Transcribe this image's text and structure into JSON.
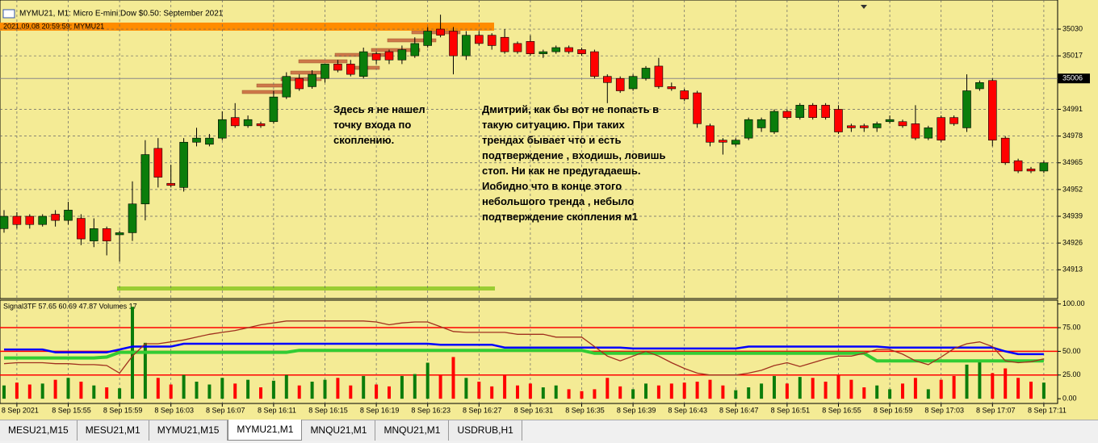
{
  "window": {
    "title": "MYMU21, M1:  Micro E-mini Dow $0.50: September 2021",
    "info": "2021.09.08 20:59:59; MYMU21"
  },
  "chart_data": [
    {
      "type": "candlestick",
      "categories": [
        null,
        "8 Sep 2021",
        null,
        null,
        null,
        "8 Sep 15:55",
        null,
        null,
        null,
        "8 Sep 15:59",
        null,
        null,
        null,
        "8 Sep 16:03",
        null,
        null,
        null,
        "8 Sep 16:07",
        null,
        null,
        null,
        "8 Sep 16:11",
        null,
        null,
        null,
        "8 Sep 16:15",
        null,
        null,
        null,
        "8 Sep 16:19",
        null,
        null,
        null,
        "8 Sep 16:23",
        null,
        null,
        null,
        "8 Sep 16:27",
        null,
        null,
        null,
        "8 Sep 16:31",
        null,
        null,
        null,
        "8 Sep 16:35",
        null,
        null,
        null,
        "8 Sep 16:39",
        null,
        null,
        null,
        "8 Sep 16:43",
        null,
        null,
        null,
        "8 Sep 16:47",
        null,
        null,
        null,
        "8 Sep 16:51",
        null,
        null,
        null,
        "8 Sep 16:55",
        null,
        null,
        null,
        "8 Sep 16:59",
        null,
        null,
        null,
        "8 Sep 17:03",
        null,
        null,
        null,
        "8 Sep 17:07",
        null,
        null,
        null,
        "8 Sep 17:11"
      ],
      "open": [
        34933,
        34939,
        34939,
        34935,
        34940,
        34937,
        34938,
        34927,
        34933,
        34930,
        34931,
        34945,
        34972,
        34955,
        34953,
        34975,
        34974,
        34977,
        34987,
        34983,
        34984,
        34985,
        34997,
        35006,
        35002,
        35006,
        35013,
        35013,
        35007,
        35018,
        35019,
        35015,
        35017,
        35022,
        35030,
        35029,
        35017,
        35027,
        35027,
        35026,
        35023,
        35024,
        35018,
        35019,
        35021,
        35020,
        35019,
        35007,
        35006,
        35001,
        35006,
        35012,
        35002,
        35000,
        34999,
        34983,
        34976,
        34974,
        34977,
        34982,
        34980,
        34990,
        34987,
        34993,
        34993,
        34991,
        34983,
        34983,
        34982,
        34985,
        34985,
        34984,
        34977,
        34987,
        34987,
        34982,
        35001,
        35005,
        34977,
        34966,
        34962,
        34961
      ],
      "high": [
        34942,
        34941,
        34940,
        34940,
        34942,
        34946,
        34940,
        34938,
        34934,
        34932,
        34956,
        34976,
        34977,
        34964,
        34977,
        34982,
        34979,
        34990,
        34994,
        34988,
        34985,
        35000,
        35009,
        35008,
        35010,
        35013,
        35015,
        35015,
        35021,
        35019,
        35020,
        35022,
        35026,
        35031,
        35037,
        35031,
        35029,
        35029,
        35028,
        35030,
        35024,
        35027,
        35020,
        35022,
        35022,
        35021,
        35020,
        35008,
        35007,
        35008,
        35012,
        35016,
        35004,
        35001,
        35000,
        34984,
        34977,
        34977,
        34987,
        34987,
        34991,
        34991,
        34994,
        34994,
        34994,
        34993,
        34984,
        34984,
        34985,
        34988,
        34986,
        34993,
        34983,
        34988,
        34988,
        35008,
        35005,
        35006,
        34978,
        34967,
        34963,
        34966
      ],
      "low": [
        34931,
        34933,
        34933,
        34934,
        34934,
        34935,
        34925,
        34924,
        34920,
        34917,
        34927,
        34937,
        34953,
        34953,
        34951,
        34973,
        34973,
        34976,
        34982,
        34982,
        34982,
        34984,
        34996,
        35000,
        35001,
        35004,
        35009,
        35007,
        35006,
        35013,
        35013,
        35013,
        35016,
        35021,
        35026,
        35008,
        35015,
        35022,
        35020,
        35018,
        35018,
        35017,
        35016,
        35018,
        35018,
        35017,
        35006,
        34994,
        34999,
        35000,
        35005,
        35001,
        35000,
        34995,
        34982,
        34973,
        34969,
        34973,
        34976,
        34980,
        34979,
        34986,
        34986,
        34986,
        34986,
        34979,
        34980,
        34980,
        34980,
        34984,
        34982,
        34976,
        34976,
        34975,
        34983,
        34980,
        35000,
        34973,
        34964,
        34960,
        34960,
        34960
      ],
      "close": [
        34939,
        34935,
        34935,
        34939,
        34937,
        34942,
        34928,
        34933,
        34927,
        34931,
        34945,
        34969,
        34958,
        34954,
        34975,
        34977,
        34977,
        34986,
        34983,
        34986,
        34983,
        34997,
        35007,
        35001,
        35008,
        35013,
        35010,
        35008,
        35019,
        35015,
        35015,
        35020,
        35023,
        35029,
        35027,
        35017,
        35027,
        35023,
        35022,
        35019,
        35019,
        35018,
        35019,
        35021,
        35019,
        35018,
        35007,
        35004,
        35000,
        35007,
        35011,
        35002,
        35001,
        34996,
        34984,
        34975,
        34975,
        34976,
        34986,
        34986,
        34990,
        34987,
        34993,
        34987,
        34987,
        34980,
        34982,
        34982,
        34984,
        34986,
        34983,
        34977,
        34982,
        34976,
        34984,
        35000,
        35004,
        34976,
        34965,
        34961,
        34961,
        34965
      ],
      "up_color": "#0b7d0b",
      "down_color": "#ff0000",
      "ylim": [
        34899,
        35041
      ],
      "yticks": [
        35030,
        35017,
        34991,
        34978,
        34965,
        34952,
        34939,
        34926,
        34913
      ],
      "price_line": 35006,
      "grid": true
    },
    {
      "type": "indicator",
      "title": "Signal3TF 57.65 60.69 47.87 Volumes 17",
      "ylim": [
        -5,
        104
      ],
      "yticks": [
        {
          "value": 100,
          "label": "100.00"
        },
        {
          "value": 75,
          "label": "75.00"
        },
        {
          "value": 50,
          "label": "50.00"
        },
        {
          "value": 25,
          "label": "25.00"
        },
        {
          "value": 0,
          "label": "0.00"
        }
      ],
      "levels": [
        75,
        50,
        25
      ],
      "level_color": "#ff0000",
      "series": [
        {
          "color": "#0000ff",
          "values": [
            52,
            52,
            52,
            52,
            49,
            49,
            49,
            49,
            49,
            52,
            55,
            55,
            55,
            55,
            58,
            58,
            58,
            58,
            58,
            58,
            58,
            58,
            58,
            58,
            58,
            58,
            58,
            58,
            58,
            58,
            58,
            58,
            58,
            58,
            57,
            57,
            57,
            57,
            57,
            54,
            54,
            54,
            54,
            54,
            54,
            54,
            54,
            54,
            54,
            53,
            53,
            53,
            53,
            53,
            53,
            53,
            53,
            53,
            55,
            55,
            55,
            55,
            55,
            55,
            55,
            55,
            55,
            55,
            55,
            54,
            54,
            54,
            54,
            54,
            54,
            54,
            54,
            54,
            50,
            47,
            47,
            47
          ]
        },
        {
          "color": "#33cc33",
          "values": [
            43,
            43,
            43,
            43,
            43,
            43,
            43,
            43,
            44,
            49,
            49,
            49,
            49,
            49,
            49,
            49,
            49,
            49,
            49,
            49,
            49,
            49,
            49,
            51,
            51,
            51,
            51,
            51,
            51,
            51,
            51,
            51,
            51,
            51,
            51,
            51,
            51,
            51,
            51,
            51,
            51,
            51,
            51,
            51,
            51,
            51,
            48,
            48,
            48,
            48,
            48,
            48,
            48,
            48,
            48,
            48,
            48,
            48,
            48,
            48,
            48,
            48,
            48,
            48,
            48,
            48,
            48,
            48,
            40,
            40,
            40,
            40,
            40,
            40,
            40,
            40,
            40,
            40,
            40,
            40,
            40,
            40
          ]
        },
        {
          "color": "#a0301e",
          "values": [
            37,
            38,
            38,
            38,
            37,
            37,
            36,
            36,
            35,
            27,
            45,
            58,
            58,
            60,
            62,
            65,
            68,
            70,
            72,
            75,
            78,
            80,
            82,
            82,
            82,
            82,
            82,
            82,
            82,
            81,
            78,
            80,
            81,
            81,
            76,
            71,
            70,
            70,
            70,
            70,
            68,
            68,
            68,
            65,
            65,
            65,
            55,
            45,
            40,
            45,
            50,
            45,
            38,
            32,
            27,
            25,
            25,
            25,
            27,
            30,
            35,
            38,
            34,
            38,
            42,
            45,
            45,
            48,
            52,
            52,
            47,
            40,
            36,
            44,
            53,
            58,
            60,
            55,
            40,
            38,
            39,
            42
          ]
        }
      ],
      "volumes": [
        14,
        17,
        15,
        16,
        20,
        22,
        18,
        14,
        12,
        11,
        97,
        59,
        22,
        15,
        25,
        18,
        15,
        22,
        16,
        20,
        12,
        19,
        25,
        14,
        18,
        20,
        22,
        14,
        24,
        15,
        13,
        24,
        26,
        38,
        25,
        44,
        22,
        18,
        13,
        25,
        14,
        16,
        12,
        14,
        10,
        8,
        10,
        22,
        13,
        10,
        16,
        14,
        16,
        17,
        18,
        20,
        14,
        9,
        12,
        16,
        24,
        16,
        23,
        22,
        18,
        25,
        20,
        12,
        14,
        10,
        16,
        22,
        10,
        20,
        24,
        36,
        40,
        27,
        32,
        22,
        18,
        17
      ],
      "grid": true
    }
  ],
  "annotations": [
    {
      "lines": [
        "Здесь я не нашел",
        "точку входа по",
        "скоплению."
      ]
    },
    {
      "lines": [
        "Дмитрий, как бы вот не попасть в",
        "такую ситуацию. При таких",
        "трендах бывает что и есть",
        "подтверждение , входишь, ловишь",
        "стоп. Ни как не предугадаешь.",
        "Иобидно что в конце этого",
        "небольшого тренда , небыло",
        "подтверждение скопления м1"
      ]
    }
  ],
  "tabs": [
    "MESU21,M15",
    "MESU21,M1",
    "MYMU21,M15",
    "MYMU21,M1",
    "MNQU21,M1",
    "MNQU21,M1",
    "USDRUB,H1"
  ],
  "active_tab": 3
}
